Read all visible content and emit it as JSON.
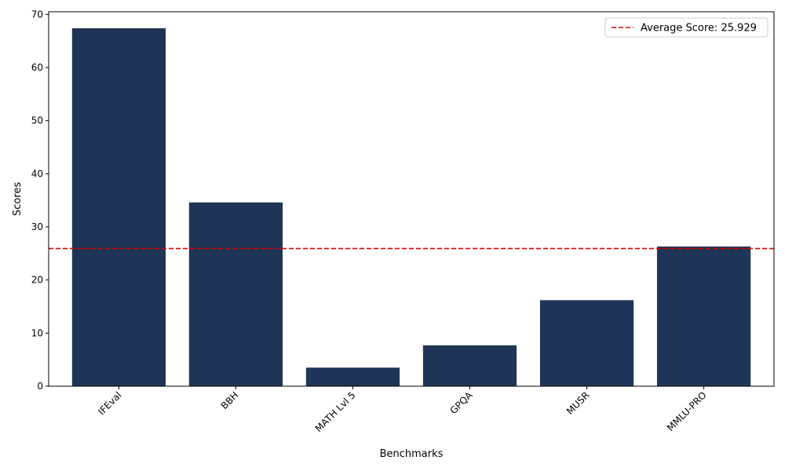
{
  "chart_data": {
    "type": "bar",
    "categories": [
      "IFEval",
      "BBH",
      "MATH Lvl 5",
      "GPQA",
      "MUSR",
      "MMLU-PRO"
    ],
    "values": [
      67.4,
      34.6,
      3.5,
      7.7,
      16.2,
      26.3
    ],
    "xlabel": "Benchmarks",
    "ylabel": "Scores",
    "ylim": [
      0,
      70.5
    ],
    "yticks": [
      0,
      10,
      20,
      30,
      40,
      50,
      60,
      70
    ],
    "bar_color": "#1f3557",
    "grid": false,
    "legend": {
      "placement": "top-right",
      "entries": [
        {
          "label": "Average Score: 25.929",
          "style": "dashed",
          "color": "#e00000"
        }
      ]
    },
    "reference_lines": [
      {
        "orientation": "horizontal",
        "value": 25.929,
        "color": "#e00000",
        "style": "dashed"
      }
    ]
  }
}
